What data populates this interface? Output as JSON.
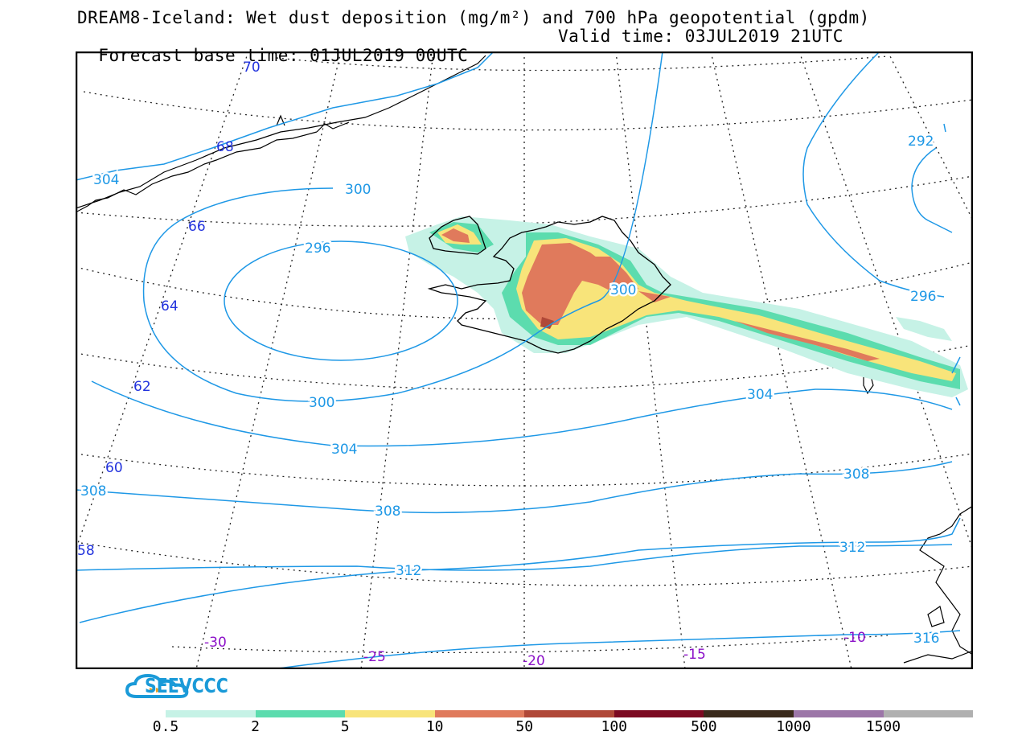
{
  "title": {
    "line1": "DREAM8-Iceland: Wet dust deposition (mg/m²) and 700 hPa geopotential (gpdm)",
    "line2_base": "Forecast base time: 01JUL2019 00UTC",
    "line2_valid": "Valid time: 03JUL2019 21UTC"
  },
  "logo": {
    "text": "SEEVCCC",
    "color": "#1a9ad8"
  },
  "contour_color": "#1e98e6",
  "lat_label_color": "#2233dd",
  "lon_label_color": "#8b10c8",
  "latitude_labels": [
    "70",
    "68",
    "66",
    "64",
    "62",
    "60",
    "58"
  ],
  "longitude_labels": [
    "-30",
    "-25",
    "-20",
    "-15",
    "-10"
  ],
  "geopotential_labels": [
    "304",
    "300",
    "296",
    "300",
    "300",
    "304",
    "304",
    "308",
    "308",
    "308",
    "312",
    "312",
    "316",
    "292",
    "296"
  ],
  "colorbar": {
    "labels": [
      "0.5",
      "2",
      "5",
      "10",
      "50",
      "100",
      "500",
      "1000",
      "1500"
    ],
    "colors": [
      "#c6f2e6",
      "#5cdcae",
      "#f8e47a",
      "#e07a5c",
      "#b04838",
      "#7c0a22",
      "#3a2a1c",
      "#9c76a8",
      "#b0b0b0"
    ]
  }
}
